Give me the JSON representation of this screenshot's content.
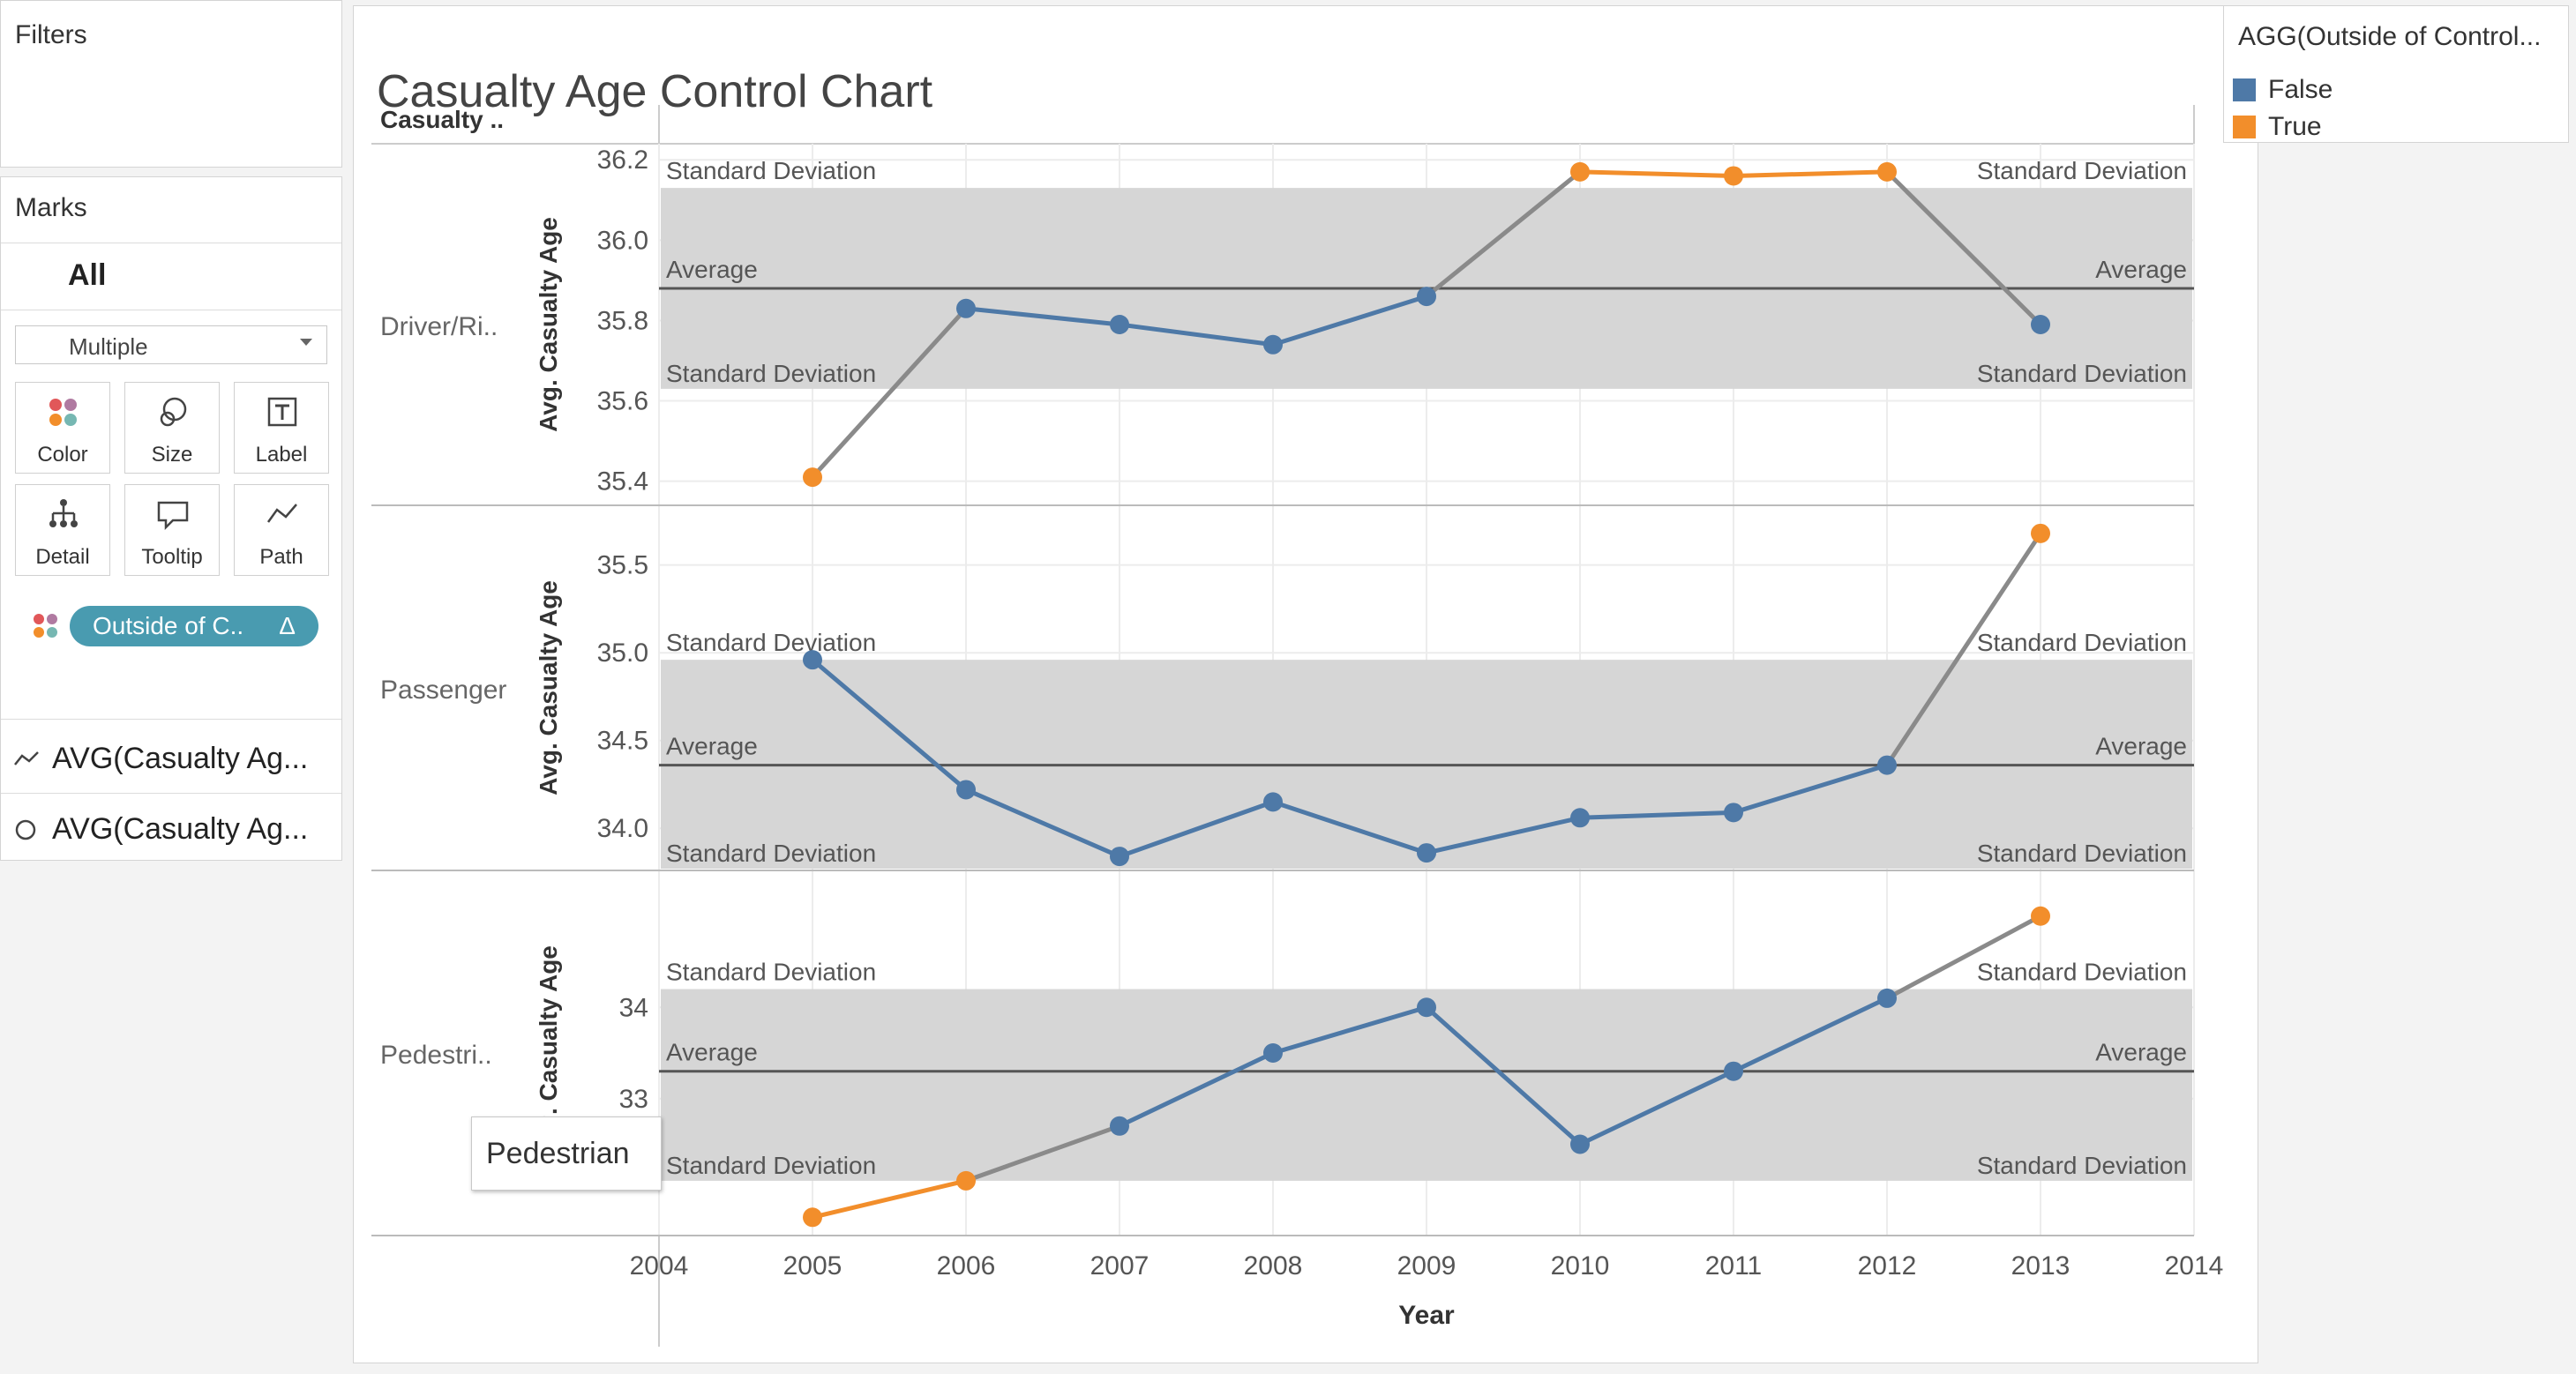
{
  "filters": {
    "title": "Filters"
  },
  "marks": {
    "title": "Marks",
    "all_label": "All",
    "mark_type": "Multiple",
    "buttons": [
      "Color",
      "Size",
      "Label",
      "Detail",
      "Tooltip",
      "Path"
    ],
    "pill_label": "Outside of C..",
    "pill_delta": "Δ",
    "measures": [
      "AVG(Casualty Ag...",
      "AVG(Casualty Ag..."
    ]
  },
  "legend": {
    "title": "AGG(Outside of Control...",
    "items": [
      {
        "label": "False",
        "color": "#4e79a7"
      },
      {
        "label": "True",
        "color": "#f28e2b"
      }
    ]
  },
  "tooltip": {
    "text": "Pedestrian"
  },
  "chart_data": {
    "type": "line",
    "title": "Casualty Age Control Chart",
    "row_header": "Casualty ..",
    "xlabel": "Year",
    "ylabel": "Avg. Casualty Age",
    "x_ticks": [
      "2004",
      "2005",
      "2006",
      "2007",
      "2008",
      "2009",
      "2010",
      "2011",
      "2012",
      "2013",
      "2014"
    ],
    "x": [
      2005,
      2006,
      2007,
      2008,
      2009,
      2010,
      2011,
      2012,
      2013
    ],
    "xlim": [
      2004,
      2014
    ],
    "band_label": "Standard Deviation",
    "avg_label": "Average",
    "colors": {
      "false": "#4e79a7",
      "true": "#f28e2b",
      "band": "#d6d6d6",
      "avg_line": "#555555"
    },
    "panels": [
      {
        "name": "Driver/Ri..",
        "ylim": [
          35.34,
          36.24
        ],
        "y_ticks": [
          "35.4",
          "35.6",
          "35.8",
          "36.0",
          "36.2"
        ],
        "y_tick_values": [
          35.4,
          35.6,
          35.8,
          36.0,
          36.2
        ],
        "values": [
          35.41,
          35.83,
          35.79,
          35.74,
          35.86,
          36.17,
          36.16,
          36.17,
          35.79
        ],
        "outside": [
          true,
          false,
          false,
          false,
          false,
          true,
          true,
          true,
          false
        ],
        "average": 35.88,
        "band": [
          35.63,
          36.13
        ]
      },
      {
        "name": "Passenger",
        "ylim": [
          33.76,
          35.84
        ],
        "y_ticks": [
          "34.0",
          "34.5",
          "35.0",
          "35.5"
        ],
        "y_tick_values": [
          34.0,
          34.5,
          35.0,
          35.5
        ],
        "values": [
          34.96,
          34.22,
          33.84,
          34.15,
          33.86,
          34.06,
          34.09,
          34.36,
          35.68
        ],
        "outside": [
          false,
          false,
          false,
          false,
          false,
          false,
          false,
          false,
          true
        ],
        "average": 34.36,
        "band": [
          33.76,
          34.96
        ]
      },
      {
        "name": "Pedestri..",
        "ylim": [
          31.5,
          35.5
        ],
        "y_ticks": [
          "33",
          "34"
        ],
        "y_tick_values": [
          33,
          34
        ],
        "values": [
          31.7,
          32.1,
          32.7,
          33.5,
          34.0,
          32.5,
          33.3,
          34.1,
          35.0
        ],
        "outside": [
          true,
          true,
          false,
          false,
          false,
          false,
          false,
          false,
          true
        ],
        "average": 33.3,
        "band": [
          32.1,
          34.2
        ]
      }
    ]
  }
}
